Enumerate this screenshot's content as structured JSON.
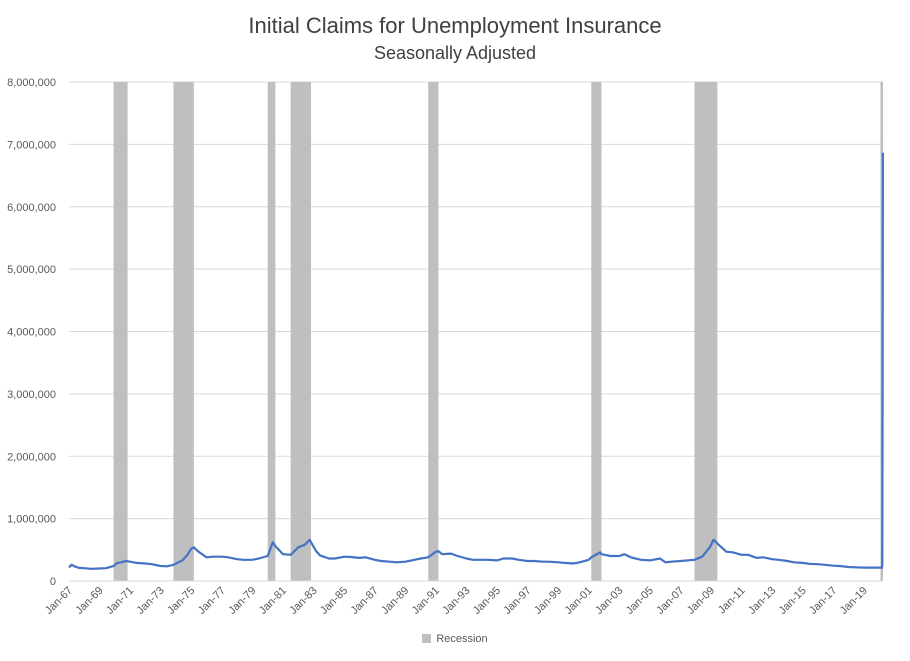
{
  "chart_data": {
    "type": "line",
    "title": "Initial Claims for Unemployment Insurance",
    "subtitle": "Seasonally Adjusted",
    "xlabel": "",
    "ylabel": "",
    "ylim": [
      0,
      8000000
    ],
    "y_ticks": [
      0,
      1000000,
      2000000,
      3000000,
      4000000,
      5000000,
      6000000,
      7000000,
      8000000
    ],
    "y_tick_labels": [
      "0",
      "1,000,000",
      "2,000,000",
      "3,000,000",
      "4,000,000",
      "5,000,000",
      "6,000,000",
      "7,000,000",
      "8,000,000"
    ],
    "xlim": [
      "1967-01",
      "2020-04"
    ],
    "x_tick_labels": [
      "Jan-67",
      "Jan-69",
      "Jan-71",
      "Jan-73",
      "Jan-75",
      "Jan-77",
      "Jan-79",
      "Jan-81",
      "Jan-83",
      "Jan-85",
      "Jan-87",
      "Jan-89",
      "Jan-91",
      "Jan-93",
      "Jan-95",
      "Jan-97",
      "Jan-99",
      "Jan-01",
      "Jan-03",
      "Jan-05",
      "Jan-07",
      "Jan-09",
      "Jan-11",
      "Jan-13",
      "Jan-15",
      "Jan-17",
      "Jan-19"
    ],
    "grid": "horizontal",
    "legend_position": "bottom",
    "legend": [
      "Recession"
    ],
    "recessions": [
      {
        "start": "1969-12",
        "end": "1970-11"
      },
      {
        "start": "1973-11",
        "end": "1975-03"
      },
      {
        "start": "1980-01",
        "end": "1980-07"
      },
      {
        "start": "1981-07",
        "end": "1982-11"
      },
      {
        "start": "1990-07",
        "end": "1991-03"
      },
      {
        "start": "2001-03",
        "end": "2001-11"
      },
      {
        "start": "2007-12",
        "end": "2009-06"
      },
      {
        "start": "2020-02",
        "end": "2020-04"
      }
    ],
    "series": [
      {
        "color": "#4472c4",
        "points": [
          [
            "1967-01",
            220000
          ],
          [
            "1967-03",
            260000
          ],
          [
            "1967-06",
            230000
          ],
          [
            "1967-09",
            210000
          ],
          [
            "1968-01",
            205000
          ],
          [
            "1968-06",
            195000
          ],
          [
            "1969-01",
            200000
          ],
          [
            "1969-06",
            205000
          ],
          [
            "1969-12",
            240000
          ],
          [
            "1970-03",
            290000
          ],
          [
            "1970-06",
            300000
          ],
          [
            "1970-10",
            320000
          ],
          [
            "1971-01",
            310000
          ],
          [
            "1971-06",
            290000
          ],
          [
            "1972-01",
            280000
          ],
          [
            "1972-06",
            270000
          ],
          [
            "1973-01",
            240000
          ],
          [
            "1973-06",
            235000
          ],
          [
            "1973-11",
            260000
          ],
          [
            "1974-06",
            330000
          ],
          [
            "1974-10",
            420000
          ],
          [
            "1975-01",
            520000
          ],
          [
            "1975-03",
            540000
          ],
          [
            "1975-06",
            480000
          ],
          [
            "1976-01",
            380000
          ],
          [
            "1976-06",
            390000
          ],
          [
            "1977-01",
            390000
          ],
          [
            "1977-06",
            380000
          ],
          [
            "1978-01",
            350000
          ],
          [
            "1978-06",
            340000
          ],
          [
            "1979-01",
            340000
          ],
          [
            "1979-06",
            360000
          ],
          [
            "1980-01",
            400000
          ],
          [
            "1980-05",
            620000
          ],
          [
            "1980-07",
            560000
          ],
          [
            "1981-01",
            430000
          ],
          [
            "1981-07",
            420000
          ],
          [
            "1982-01",
            540000
          ],
          [
            "1982-06",
            580000
          ],
          [
            "1982-10",
            660000
          ],
          [
            "1982-11",
            620000
          ],
          [
            "1983-03",
            480000
          ],
          [
            "1983-06",
            410000
          ],
          [
            "1984-01",
            360000
          ],
          [
            "1984-06",
            360000
          ],
          [
            "1985-01",
            390000
          ],
          [
            "1985-06",
            385000
          ],
          [
            "1986-01",
            370000
          ],
          [
            "1986-06",
            380000
          ],
          [
            "1987-01",
            340000
          ],
          [
            "1987-06",
            320000
          ],
          [
            "1988-01",
            310000
          ],
          [
            "1988-06",
            300000
          ],
          [
            "1989-01",
            310000
          ],
          [
            "1989-06",
            330000
          ],
          [
            "1990-01",
            360000
          ],
          [
            "1990-07",
            380000
          ],
          [
            "1991-01",
            470000
          ],
          [
            "1991-03",
            480000
          ],
          [
            "1991-06",
            430000
          ],
          [
            "1992-01",
            440000
          ],
          [
            "1992-06",
            400000
          ],
          [
            "1993-01",
            360000
          ],
          [
            "1993-06",
            340000
          ],
          [
            "1994-01",
            340000
          ],
          [
            "1994-06",
            340000
          ],
          [
            "1995-01",
            330000
          ],
          [
            "1995-06",
            360000
          ],
          [
            "1996-01",
            360000
          ],
          [
            "1996-06",
            340000
          ],
          [
            "1997-01",
            320000
          ],
          [
            "1997-06",
            320000
          ],
          [
            "1998-01",
            310000
          ],
          [
            "1998-06",
            310000
          ],
          [
            "1999-01",
            300000
          ],
          [
            "1999-06",
            290000
          ],
          [
            "2000-01",
            280000
          ],
          [
            "2000-06",
            300000
          ],
          [
            "2001-01",
            340000
          ],
          [
            "2001-03",
            380000
          ],
          [
            "2001-10",
            460000
          ],
          [
            "2001-11",
            430000
          ],
          [
            "2002-06",
            400000
          ],
          [
            "2003-01",
            400000
          ],
          [
            "2003-05",
            430000
          ],
          [
            "2003-10",
            380000
          ],
          [
            "2004-06",
            340000
          ],
          [
            "2005-01",
            330000
          ],
          [
            "2005-09",
            360000
          ],
          [
            "2006-01",
            300000
          ],
          [
            "2006-06",
            310000
          ],
          [
            "2007-01",
            320000
          ],
          [
            "2007-12",
            340000
          ],
          [
            "2008-06",
            390000
          ],
          [
            "2008-12",
            540000
          ],
          [
            "2009-03",
            660000
          ],
          [
            "2009-06",
            600000
          ],
          [
            "2010-01",
            470000
          ],
          [
            "2010-06",
            460000
          ],
          [
            "2011-01",
            420000
          ],
          [
            "2011-06",
            420000
          ],
          [
            "2012-01",
            370000
          ],
          [
            "2012-06",
            380000
          ],
          [
            "2013-01",
            350000
          ],
          [
            "2013-06",
            340000
          ],
          [
            "2014-01",
            320000
          ],
          [
            "2014-06",
            300000
          ],
          [
            "2015-01",
            290000
          ],
          [
            "2015-06",
            275000
          ],
          [
            "2016-01",
            270000
          ],
          [
            "2016-06",
            260000
          ],
          [
            "2017-01",
            245000
          ],
          [
            "2017-06",
            240000
          ],
          [
            "2018-01",
            225000
          ],
          [
            "2018-06",
            220000
          ],
          [
            "2019-01",
            215000
          ],
          [
            "2019-06",
            215000
          ],
          [
            "2020-01",
            215000
          ],
          [
            "2020-02-29",
            216000
          ],
          [
            "2020-03-07",
            211000
          ],
          [
            "2020-03-14",
            282000
          ],
          [
            "2020-03-21",
            3307000
          ],
          [
            "2020-03-28",
            6867000
          ]
        ]
      }
    ]
  }
}
